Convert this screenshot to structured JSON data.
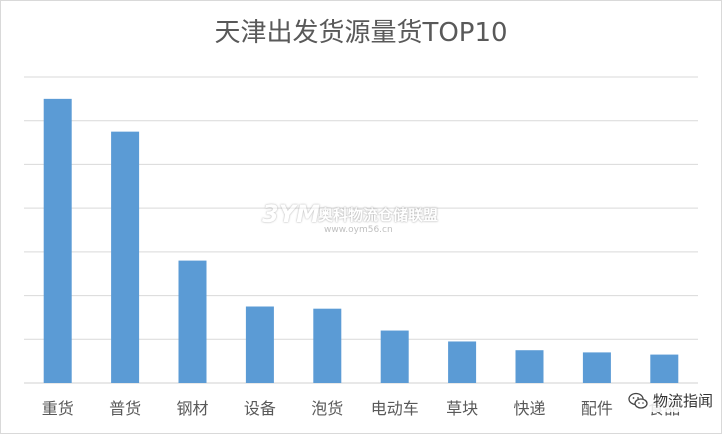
{
  "chart_data": {
    "type": "bar",
    "title": "天津出发货源量货TOP10",
    "categories": [
      "重货",
      "普货",
      "钢材",
      "设备",
      "泡货",
      "电动车",
      "草块",
      "快递",
      "配件",
      "食品"
    ],
    "values": [
      6.5,
      5.75,
      2.8,
      1.75,
      1.7,
      1.2,
      0.95,
      0.75,
      0.7,
      0.65
    ],
    "ylim": [
      0,
      7
    ],
    "grid": true,
    "legend": "none",
    "bar_color": "#5b9bd5",
    "grid_color": "#d9d9d9",
    "text_color": "#595959"
  },
  "watermark": {
    "badge": "3YM",
    "text": "奥科物流仓储联盟",
    "url": "www.oym56.cn"
  },
  "brand": {
    "label": "物流指闻"
  }
}
